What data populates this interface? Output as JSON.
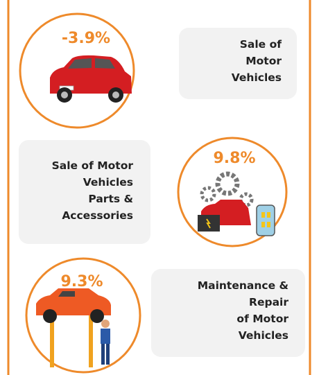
{
  "items": [
    {
      "value_label": "-3.9%",
      "label_lines": [
        "Sale of",
        "Motor",
        "Vehicles"
      ]
    },
    {
      "value_label": "9.8%",
      "label_lines": [
        "Sale of Motor",
        "Vehicles",
        "Parts &",
        "Accessories"
      ]
    },
    {
      "value_label": "9.3%",
      "label_lines": [
        "Maintenance &",
        "Repair",
        "of Motor",
        "Vehicles"
      ]
    }
  ]
}
